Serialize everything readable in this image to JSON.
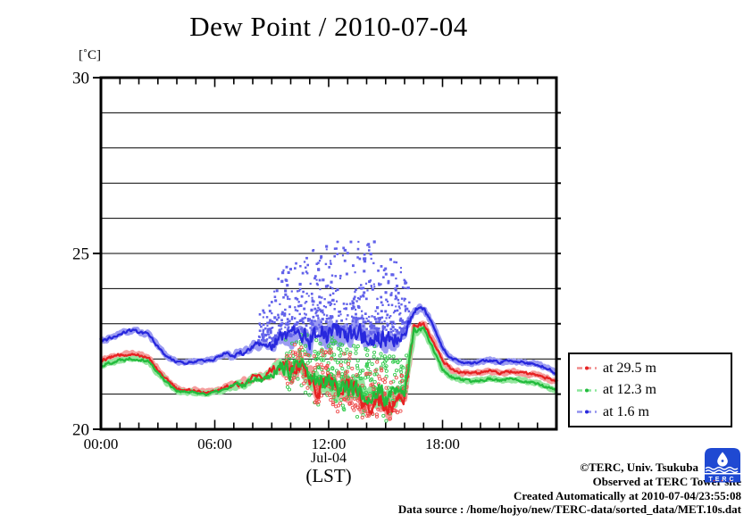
{
  "chart_data": {
    "type": "line",
    "title": "Dew Point / 2010-07-04",
    "ylabel": "[˚C]",
    "x_date_label": "Jul-04",
    "x_unit_label": "(LST)",
    "xlim_hours": [
      0,
      24
    ],
    "ylim": [
      20,
      30
    ],
    "x_major_ticks": [
      {
        "t": 0,
        "label": "00:00"
      },
      {
        "t": 6,
        "label": "06:00"
      },
      {
        "t": 12,
        "label": "12:00"
      },
      {
        "t": 18,
        "label": "18:00"
      },
      {
        "t": 24,
        "label": ""
      }
    ],
    "x_minor_step_hours": 1,
    "y_major_ticks": [
      {
        "v": 20,
        "label": "20"
      },
      {
        "v": 25,
        "label": "25"
      },
      {
        "v": 30,
        "label": "30"
      }
    ],
    "y_gridlines": [
      21,
      22,
      23,
      24,
      25,
      26,
      27,
      28,
      29
    ],
    "grid": "horizontal-only",
    "legend_position": "outside-right-bottom",
    "sample_step_hours": 0.5,
    "series": [
      {
        "name": "at 29.5 m",
        "color": "#e62222",
        "band_color": "#f59d9d",
        "scatter_color": "#ee5050",
        "values": [
          21.95,
          22.05,
          22.1,
          22.15,
          22.12,
          22.05,
          21.7,
          21.4,
          21.15,
          21.1,
          21.1,
          21.05,
          21.1,
          21.18,
          21.3,
          21.3,
          21.5,
          21.48,
          21.65,
          21.85,
          21.65,
          21.85,
          21.4,
          21.2,
          21.5,
          21.0,
          21.2,
          20.9,
          20.7,
          20.9,
          20.6,
          20.8,
          20.95,
          22.9,
          23.0,
          22.5,
          21.95,
          21.7,
          21.62,
          21.58,
          21.62,
          21.66,
          21.6,
          21.65,
          21.62,
          21.58,
          21.55,
          21.45,
          21.35
        ]
      },
      {
        "name": "at 12.3 m",
        "color": "#22bb3c",
        "band_color": "#94e69e",
        "scatter_color": "#36cc50",
        "values": [
          21.8,
          21.9,
          21.97,
          22.02,
          22.0,
          21.95,
          21.6,
          21.33,
          21.1,
          21.05,
          21.05,
          21.0,
          21.05,
          21.12,
          21.25,
          21.25,
          21.45,
          21.43,
          21.6,
          21.8,
          21.62,
          21.82,
          21.45,
          21.3,
          21.55,
          21.12,
          21.3,
          21.05,
          20.9,
          21.08,
          20.85,
          21.0,
          21.1,
          22.8,
          22.85,
          22.3,
          21.7,
          21.48,
          21.4,
          21.36,
          21.4,
          21.44,
          21.38,
          21.43,
          21.4,
          21.36,
          21.3,
          21.2,
          21.1
        ]
      },
      {
        "name": "at 1.6 m",
        "color": "#2828dd",
        "band_color": "#9c9cf2",
        "scatter_color": "#6262ea",
        "values": [
          22.5,
          22.6,
          22.7,
          22.8,
          22.78,
          22.7,
          22.35,
          22.05,
          21.92,
          21.9,
          21.95,
          21.95,
          22.0,
          22.15,
          22.1,
          22.2,
          22.35,
          22.45,
          22.4,
          22.65,
          22.55,
          22.75,
          22.55,
          22.85,
          22.65,
          22.8,
          22.6,
          22.85,
          22.55,
          22.7,
          22.45,
          22.6,
          22.7,
          23.4,
          23.45,
          22.95,
          22.3,
          22.0,
          21.92,
          21.88,
          21.92,
          21.96,
          21.9,
          21.95,
          21.92,
          21.88,
          21.85,
          21.75,
          21.6
        ]
      }
    ],
    "turbulence_amplitude_c": [
      0.06,
      0.06,
      0.06,
      0.06,
      0.06,
      0.06,
      0.05,
      0.05,
      0.05,
      0.05,
      0.05,
      0.05,
      0.05,
      0.05,
      0.1,
      0.1,
      0.12,
      0.12,
      0.18,
      0.28,
      0.3,
      0.3,
      0.35,
      0.35,
      0.38,
      0.38,
      0.4,
      0.4,
      0.4,
      0.38,
      0.35,
      0.32,
      0.25,
      0.12,
      0.08,
      0.05,
      0.05,
      0.05,
      0.05,
      0.05,
      0.05,
      0.05,
      0.05,
      0.05,
      0.05,
      0.05,
      0.05,
      0.05,
      0.05
    ],
    "noisy_period_hours": [
      9.5,
      16.2
    ],
    "scatter_max_c": 25.33
  },
  "footer": {
    "lines": [
      "©TERC, Univ. Tsukuba",
      "Observed at TERC Tower site",
      "Created Automatically at 2010-07-04/23:55:08",
      "Data source : /home/hojyo/new/TERC-data/sorted_data/MET.10s.dat"
    ]
  },
  "logo": {
    "text": "TERC"
  }
}
